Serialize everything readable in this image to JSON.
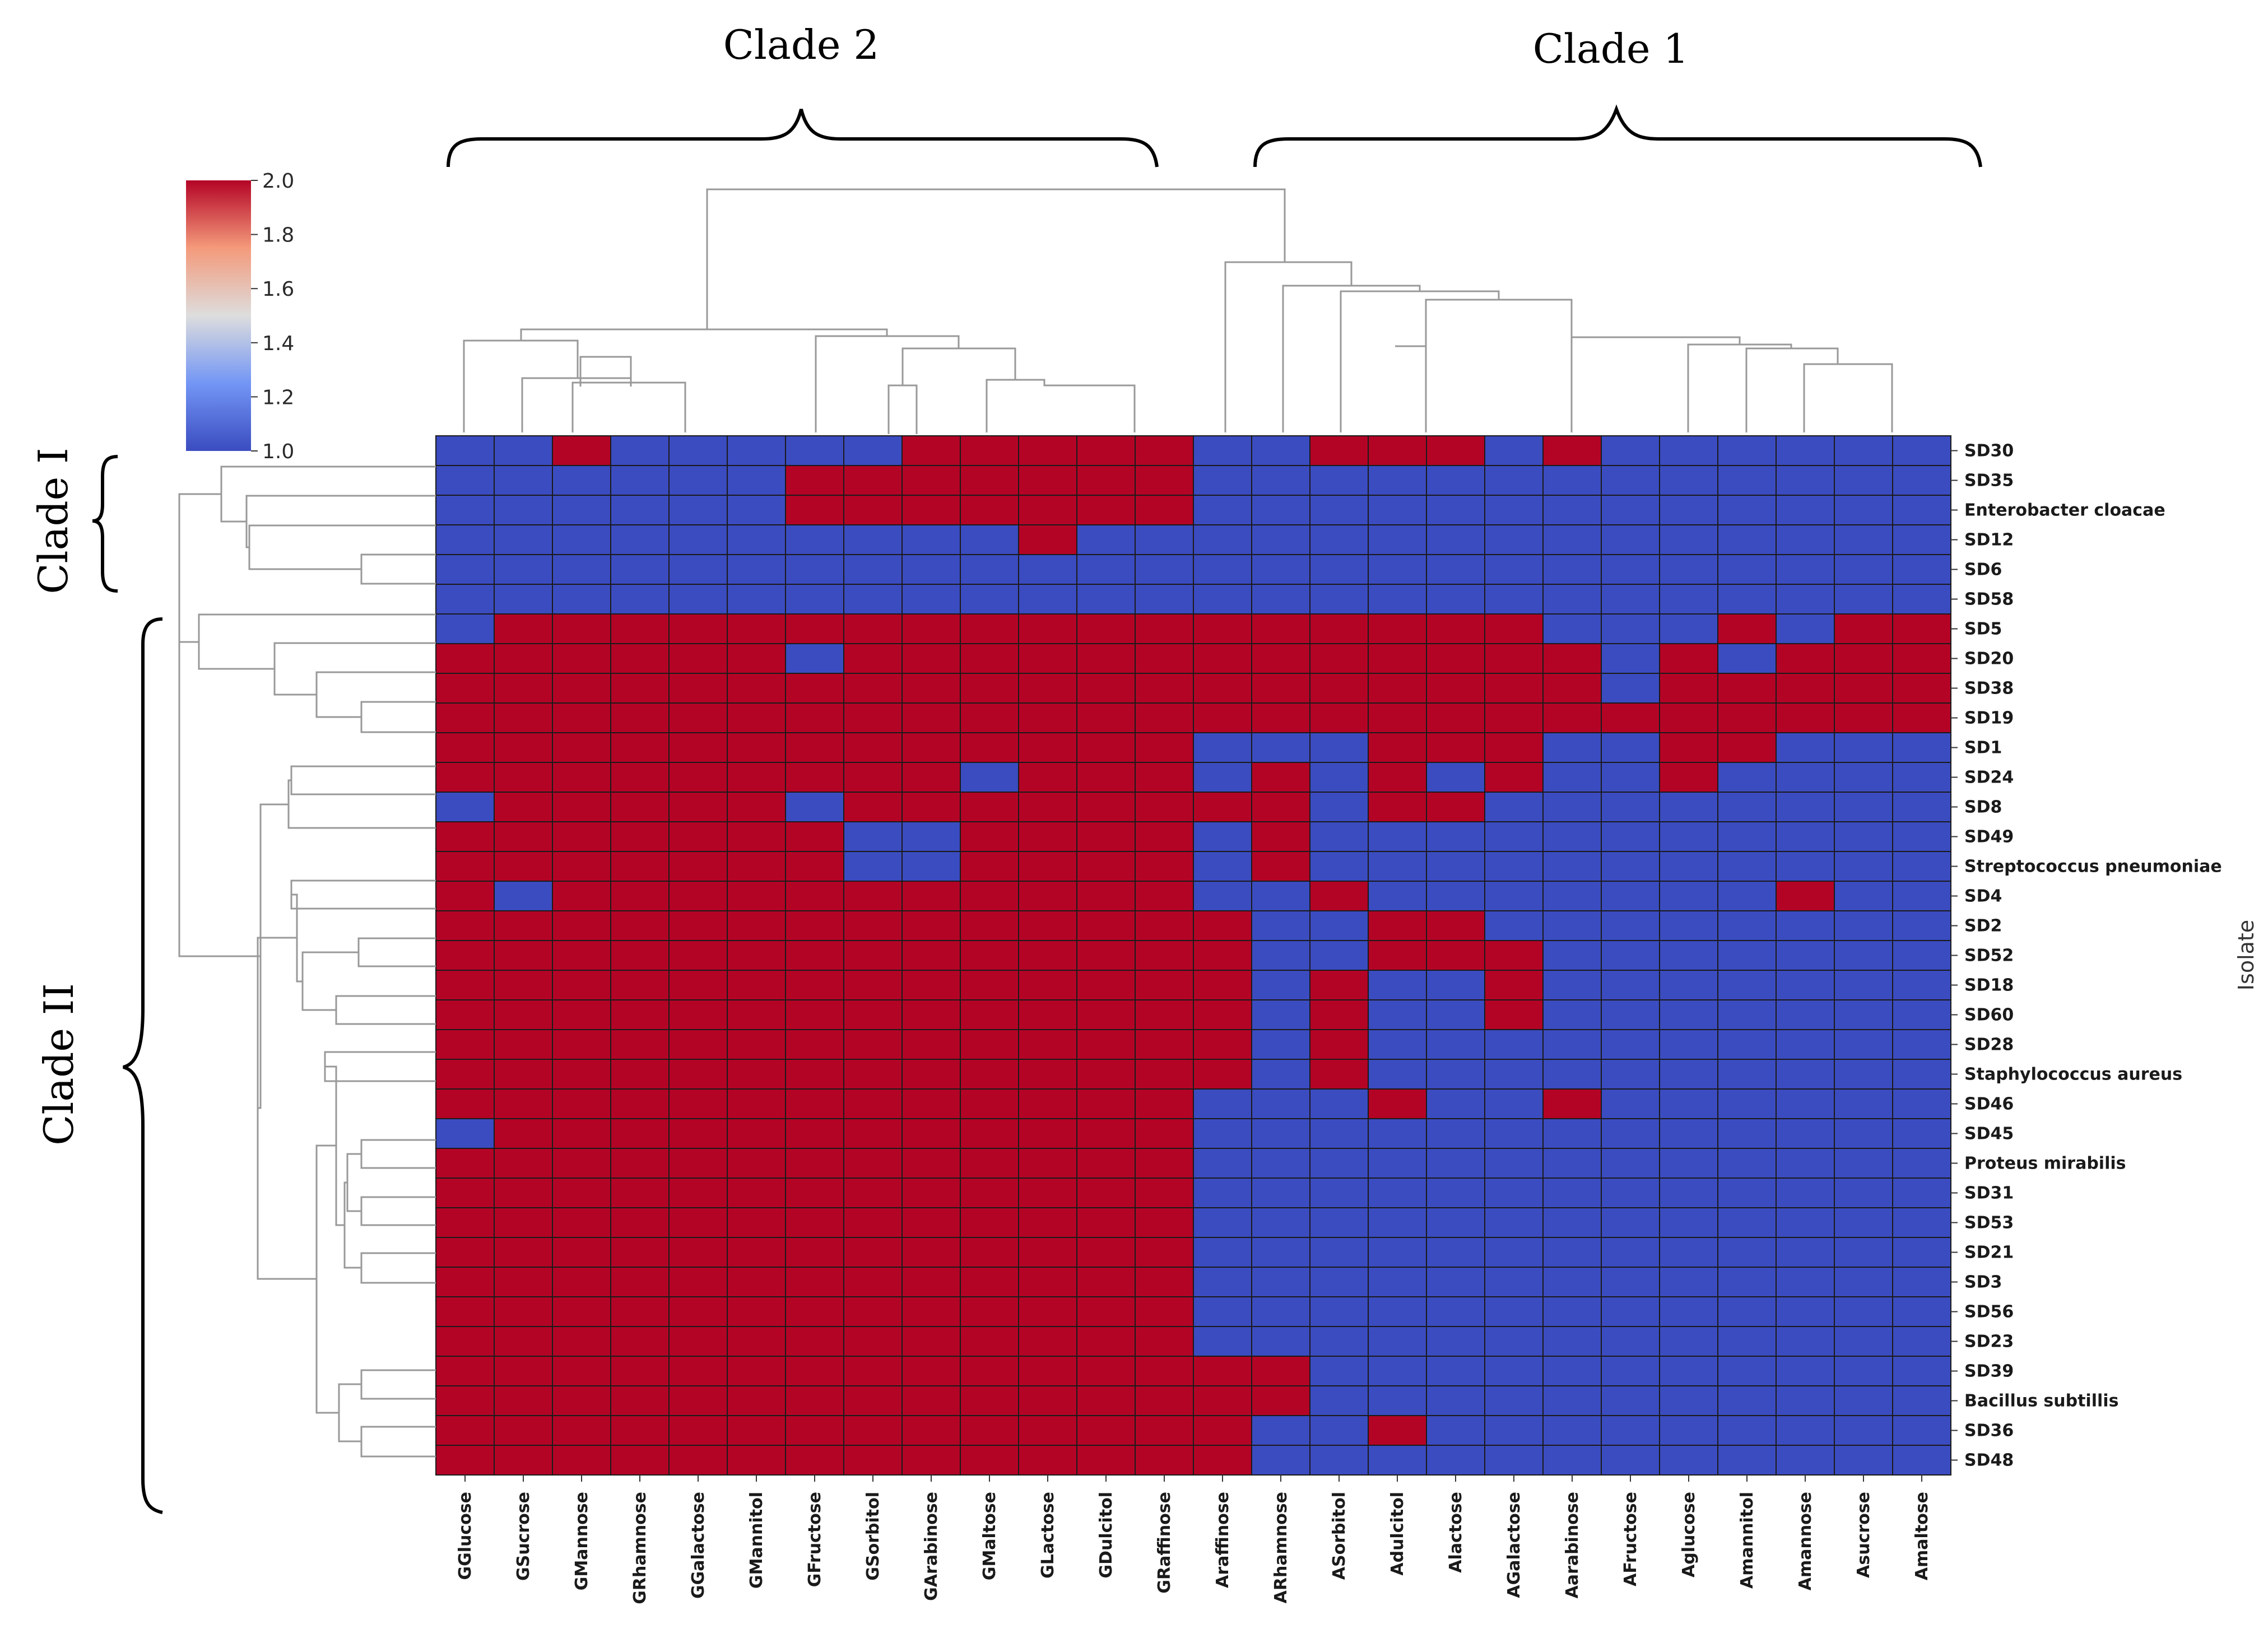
{
  "chart_data": {
    "type": "heatmap",
    "title": "",
    "ylabel": "Isolate",
    "colorbar": {
      "min": 1.0,
      "max": 2.0,
      "ticks": [
        "1.0",
        "1.2",
        "1.4",
        "1.6",
        "1.8",
        "2.0"
      ],
      "colormap": "coolwarm"
    },
    "colors": {
      "low": "#3b4cc0",
      "high": "#b40426",
      "grid": "#1a1a1a",
      "dendrogram": "#999999"
    },
    "columns": [
      "GGlucose",
      "GSucrose",
      "GMannose",
      "GRhamnose",
      "GGalactose",
      "GMannitol",
      "GFructose",
      "GSorbitol",
      "GArabinose",
      "GMaltose",
      "GLactose",
      "GDulcitol",
      "GRaffinose",
      "Araffinose",
      "ARhamnose",
      "ASorbitol",
      "Adulcitol",
      "Alactose",
      "AGalactose",
      "Aarabinose",
      "AFructose",
      "Aglucose",
      "Amannitol",
      "Amannose",
      "Asucrose",
      "Amaltose"
    ],
    "rows": [
      "SD30",
      "SD35",
      "Enterobacter cloacae",
      "SD12",
      "SD6",
      "SD58",
      "SD5",
      "SD20",
      "SD38",
      "SD19",
      "SD1",
      "SD24",
      "SD8",
      "SD49",
      "Streptococcus pneumoniae",
      "SD4",
      "SD2",
      "SD52",
      "SD18",
      "SD60",
      "SD28",
      "Staphylococcus aureus",
      "SD46",
      "SD45",
      "Proteus mirabilis",
      "SD31",
      "SD53",
      "SD21",
      "SD3",
      "SD56",
      "SD23",
      "SD39",
      "Bacillus subtillis",
      "SD36",
      "SD48"
    ],
    "values": [
      [
        1,
        1,
        2,
        1,
        1,
        1,
        1,
        1,
        2,
        2,
        2,
        2,
        2,
        1,
        1,
        2,
        2,
        2,
        1,
        2,
        1,
        1,
        1,
        1,
        1,
        1
      ],
      [
        1,
        1,
        1,
        1,
        1,
        1,
        2,
        2,
        2,
        2,
        2,
        2,
        2,
        1,
        1,
        1,
        1,
        1,
        1,
        1,
        1,
        1,
        1,
        1,
        1,
        1
      ],
      [
        1,
        1,
        1,
        1,
        1,
        1,
        2,
        2,
        2,
        2,
        2,
        2,
        2,
        1,
        1,
        1,
        1,
        1,
        1,
        1,
        1,
        1,
        1,
        1,
        1,
        1
      ],
      [
        1,
        1,
        1,
        1,
        1,
        1,
        1,
        1,
        1,
        1,
        2,
        1,
        1,
        1,
        1,
        1,
        1,
        1,
        1,
        1,
        1,
        1,
        1,
        1,
        1,
        1
      ],
      [
        1,
        1,
        1,
        1,
        1,
        1,
        1,
        1,
        1,
        1,
        1,
        1,
        1,
        1,
        1,
        1,
        1,
        1,
        1,
        1,
        1,
        1,
        1,
        1,
        1,
        1
      ],
      [
        1,
        1,
        1,
        1,
        1,
        1,
        1,
        1,
        1,
        1,
        1,
        1,
        1,
        1,
        1,
        1,
        1,
        1,
        1,
        1,
        1,
        1,
        1,
        1,
        1,
        1
      ],
      [
        1,
        2,
        2,
        2,
        2,
        2,
        2,
        2,
        2,
        2,
        2,
        2,
        2,
        2,
        2,
        2,
        2,
        2,
        2,
        1,
        1,
        1,
        2,
        1,
        2,
        2
      ],
      [
        2,
        2,
        2,
        2,
        2,
        2,
        1,
        2,
        2,
        2,
        2,
        2,
        2,
        2,
        2,
        2,
        2,
        2,
        2,
        2,
        1,
        2,
        1,
        2,
        2,
        2
      ],
      [
        2,
        2,
        2,
        2,
        2,
        2,
        2,
        2,
        2,
        2,
        2,
        2,
        2,
        2,
        2,
        2,
        2,
        2,
        2,
        2,
        1,
        2,
        2,
        2,
        2,
        2
      ],
      [
        2,
        2,
        2,
        2,
        2,
        2,
        2,
        2,
        2,
        2,
        2,
        2,
        2,
        2,
        2,
        2,
        2,
        2,
        2,
        2,
        2,
        2,
        2,
        2,
        2,
        2
      ],
      [
        2,
        2,
        2,
        2,
        2,
        2,
        2,
        2,
        2,
        2,
        2,
        2,
        2,
        1,
        1,
        1,
        2,
        2,
        2,
        1,
        1,
        2,
        2,
        1,
        1,
        1
      ],
      [
        2,
        2,
        2,
        2,
        2,
        2,
        2,
        2,
        2,
        1,
        2,
        2,
        2,
        1,
        2,
        1,
        2,
        1,
        2,
        1,
        1,
        2,
        1,
        1,
        1,
        1
      ],
      [
        1,
        2,
        2,
        2,
        2,
        2,
        1,
        2,
        2,
        2,
        2,
        2,
        2,
        2,
        2,
        1,
        2,
        2,
        1,
        1,
        1,
        1,
        1,
        1,
        1,
        1
      ],
      [
        2,
        2,
        2,
        2,
        2,
        2,
        2,
        1,
        1,
        2,
        2,
        2,
        2,
        1,
        2,
        1,
        1,
        1,
        1,
        1,
        1,
        1,
        1,
        1,
        1,
        1
      ],
      [
        2,
        2,
        2,
        2,
        2,
        2,
        2,
        1,
        1,
        2,
        2,
        2,
        2,
        1,
        2,
        1,
        1,
        1,
        1,
        1,
        1,
        1,
        1,
        1,
        1,
        1
      ],
      [
        2,
        1,
        2,
        2,
        2,
        2,
        2,
        2,
        2,
        2,
        2,
        2,
        2,
        1,
        1,
        2,
        1,
        1,
        1,
        1,
        1,
        1,
        1,
        2,
        1,
        1
      ],
      [
        2,
        2,
        2,
        2,
        2,
        2,
        2,
        2,
        2,
        2,
        2,
        2,
        2,
        2,
        1,
        1,
        2,
        2,
        1,
        1,
        1,
        1,
        1,
        1,
        1,
        1
      ],
      [
        2,
        2,
        2,
        2,
        2,
        2,
        2,
        2,
        2,
        2,
        2,
        2,
        2,
        2,
        1,
        1,
        2,
        2,
        2,
        1,
        1,
        1,
        1,
        1,
        1,
        1
      ],
      [
        2,
        2,
        2,
        2,
        2,
        2,
        2,
        2,
        2,
        2,
        2,
        2,
        2,
        2,
        1,
        2,
        1,
        1,
        2,
        1,
        1,
        1,
        1,
        1,
        1,
        1
      ],
      [
        2,
        2,
        2,
        2,
        2,
        2,
        2,
        2,
        2,
        2,
        2,
        2,
        2,
        2,
        1,
        2,
        1,
        1,
        2,
        1,
        1,
        1,
        1,
        1,
        1,
        1
      ],
      [
        2,
        2,
        2,
        2,
        2,
        2,
        2,
        2,
        2,
        2,
        2,
        2,
        2,
        2,
        1,
        2,
        1,
        1,
        1,
        1,
        1,
        1,
        1,
        1,
        1,
        1
      ],
      [
        2,
        2,
        2,
        2,
        2,
        2,
        2,
        2,
        2,
        2,
        2,
        2,
        2,
        2,
        1,
        2,
        1,
        1,
        1,
        1,
        1,
        1,
        1,
        1,
        1,
        1
      ],
      [
        2,
        2,
        2,
        2,
        2,
        2,
        2,
        2,
        2,
        2,
        2,
        2,
        2,
        1,
        1,
        1,
        2,
        1,
        1,
        2,
        1,
        1,
        1,
        1,
        1,
        1
      ],
      [
        1,
        2,
        2,
        2,
        2,
        2,
        2,
        2,
        2,
        2,
        2,
        2,
        2,
        1,
        1,
        1,
        1,
        1,
        1,
        1,
        1,
        1,
        1,
        1,
        1,
        1
      ],
      [
        2,
        2,
        2,
        2,
        2,
        2,
        2,
        2,
        2,
        2,
        2,
        2,
        2,
        1,
        1,
        1,
        1,
        1,
        1,
        1,
        1,
        1,
        1,
        1,
        1,
        1
      ],
      [
        2,
        2,
        2,
        2,
        2,
        2,
        2,
        2,
        2,
        2,
        2,
        2,
        2,
        1,
        1,
        1,
        1,
        1,
        1,
        1,
        1,
        1,
        1,
        1,
        1,
        1
      ],
      [
        2,
        2,
        2,
        2,
        2,
        2,
        2,
        2,
        2,
        2,
        2,
        2,
        2,
        1,
        1,
        1,
        1,
        1,
        1,
        1,
        1,
        1,
        1,
        1,
        1,
        1
      ],
      [
        2,
        2,
        2,
        2,
        2,
        2,
        2,
        2,
        2,
        2,
        2,
        2,
        2,
        1,
        1,
        1,
        1,
        1,
        1,
        1,
        1,
        1,
        1,
        1,
        1,
        1
      ],
      [
        2,
        2,
        2,
        2,
        2,
        2,
        2,
        2,
        2,
        2,
        2,
        2,
        2,
        1,
        1,
        1,
        1,
        1,
        1,
        1,
        1,
        1,
        1,
        1,
        1,
        1
      ],
      [
        2,
        2,
        2,
        2,
        2,
        2,
        2,
        2,
        2,
        2,
        2,
        2,
        2,
        1,
        1,
        1,
        1,
        1,
        1,
        1,
        1,
        1,
        1,
        1,
        1,
        1
      ],
      [
        2,
        2,
        2,
        2,
        2,
        2,
        2,
        2,
        2,
        2,
        2,
        2,
        2,
        1,
        1,
        1,
        1,
        1,
        1,
        1,
        1,
        1,
        1,
        1,
        1,
        1
      ],
      [
        2,
        2,
        2,
        2,
        2,
        2,
        2,
        2,
        2,
        2,
        2,
        2,
        2,
        2,
        2,
        1,
        1,
        1,
        1,
        1,
        1,
        1,
        1,
        1,
        1,
        1
      ],
      [
        2,
        2,
        2,
        2,
        2,
        2,
        2,
        2,
        2,
        2,
        2,
        2,
        2,
        2,
        2,
        1,
        1,
        1,
        1,
        1,
        1,
        1,
        1,
        1,
        1,
        1
      ],
      [
        2,
        2,
        2,
        2,
        2,
        2,
        2,
        2,
        2,
        2,
        2,
        2,
        2,
        2,
        1,
        1,
        2,
        1,
        1,
        1,
        1,
        1,
        1,
        1,
        1,
        1
      ],
      [
        2,
        2,
        2,
        2,
        2,
        2,
        2,
        2,
        2,
        2,
        2,
        2,
        2,
        2,
        1,
        1,
        1,
        1,
        1,
        1,
        1,
        1,
        1,
        1,
        1,
        1
      ]
    ],
    "column_clade_labels": {
      "left": "Clade 2",
      "right": "Clade 1"
    },
    "row_clade_labels": {
      "top": "Clade I",
      "bottom": "Clade II"
    }
  }
}
